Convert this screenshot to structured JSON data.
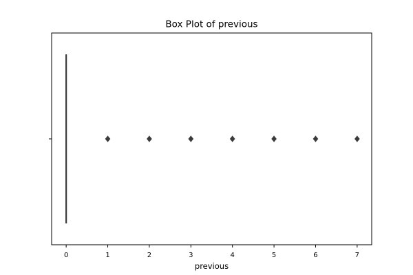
{
  "chart_data": {
    "type": "box",
    "title": "Box Plot of previous",
    "xlabel": "previous",
    "ylabel": "",
    "xlim": [
      -0.35,
      7.35
    ],
    "xticks": [
      "0",
      "1",
      "2",
      "3",
      "4",
      "5",
      "6",
      "7"
    ],
    "grid": false,
    "series": [
      {
        "min": 0,
        "q1": 0,
        "median": 0,
        "q3": 0,
        "max": 0,
        "outliers": [
          1,
          2,
          3,
          4,
          5,
          6,
          7
        ]
      }
    ],
    "colors": {
      "box": "#3b3b3b",
      "frame": "#000000"
    }
  }
}
